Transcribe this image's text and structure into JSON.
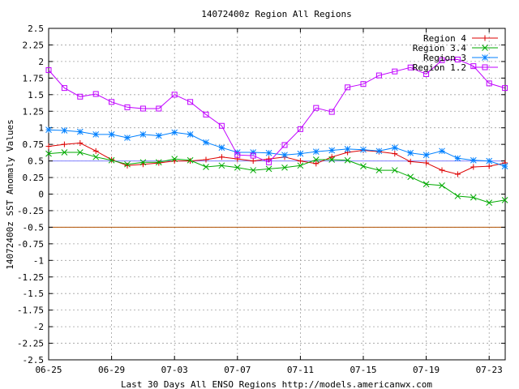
{
  "chart_data": {
    "type": "line",
    "title": "14072400z Region All Regions",
    "xlabel": "Last 30 Days All ENSO Regions http://models.americanwx.com",
    "ylabel": "14072400z SST Anomaly Values",
    "x_tick_labels": [
      "06-25",
      "06-29",
      "07-03",
      "07-07",
      "07-11",
      "07-15",
      "07-19",
      "07-23"
    ],
    "y_tick_labels": [
      "2.5",
      "2.25",
      "2",
      "1.75",
      "1.5",
      "1.25",
      "1",
      "0.75",
      "0.5",
      "0.25",
      "0",
      "-0.25",
      "-0.5",
      "-0.75",
      "-1",
      "-1.25",
      "-1.5",
      "-1.75",
      "-2",
      "-2.25",
      "-2.5"
    ],
    "ylim": [
      -2.5,
      2.5
    ],
    "grid": true,
    "legend_position": "top-right",
    "x": [
      "06-25",
      "06-26",
      "06-27",
      "06-28",
      "06-29",
      "06-30",
      "07-01",
      "07-02",
      "07-03",
      "07-04",
      "07-05",
      "07-06",
      "07-07",
      "07-08",
      "07-09",
      "07-10",
      "07-11",
      "07-12",
      "07-13",
      "07-14",
      "07-15",
      "07-16",
      "07-17",
      "07-18",
      "07-19",
      "07-20",
      "07-21",
      "07-22",
      "07-23",
      "07-24"
    ],
    "reference_lines": [
      {
        "y": 0.5,
        "color": "#8080ff"
      },
      {
        "y": -0.5,
        "color": "#b05000"
      }
    ],
    "series": [
      {
        "name": "Region 4",
        "color": "#dd0000",
        "marker": "+",
        "values": [
          0.72,
          0.75,
          0.77,
          0.65,
          0.52,
          0.43,
          0.45,
          0.47,
          0.5,
          0.5,
          0.52,
          0.56,
          0.53,
          0.5,
          0.53,
          0.56,
          0.5,
          0.46,
          0.56,
          0.63,
          0.66,
          0.64,
          0.61,
          0.49,
          0.47,
          0.36,
          0.3,
          0.41,
          0.42,
          0.47
        ]
      },
      {
        "name": "Region 3.4",
        "color": "#00aa00",
        "marker": "x",
        "values": [
          0.61,
          0.63,
          0.63,
          0.56,
          0.51,
          0.45,
          0.48,
          0.48,
          0.53,
          0.51,
          0.41,
          0.43,
          0.4,
          0.36,
          0.38,
          0.4,
          0.43,
          0.52,
          0.52,
          0.51,
          0.42,
          0.36,
          0.36,
          0.26,
          0.15,
          0.13,
          -0.03,
          -0.05,
          -0.13,
          -0.09
        ]
      },
      {
        "name": "Region 3",
        "color": "#0080ff",
        "marker": "*",
        "values": [
          0.97,
          0.96,
          0.94,
          0.9,
          0.9,
          0.85,
          0.9,
          0.88,
          0.93,
          0.9,
          0.78,
          0.7,
          0.63,
          0.63,
          0.62,
          0.59,
          0.61,
          0.64,
          0.66,
          0.68,
          0.67,
          0.65,
          0.7,
          0.62,
          0.59,
          0.65,
          0.54,
          0.51,
          0.5,
          0.42
        ]
      },
      {
        "name": "Region 1.2",
        "color": "#c000ff",
        "marker": "square",
        "values": [
          1.87,
          1.6,
          1.47,
          1.51,
          1.39,
          1.31,
          1.29,
          1.29,
          1.5,
          1.39,
          1.2,
          1.03,
          0.59,
          0.58,
          0.48,
          0.74,
          0.98,
          1.3,
          1.24,
          1.61,
          1.66,
          1.79,
          1.85,
          1.91,
          1.81,
          2.02,
          2.03,
          1.93,
          1.67,
          1.6
        ]
      }
    ]
  }
}
